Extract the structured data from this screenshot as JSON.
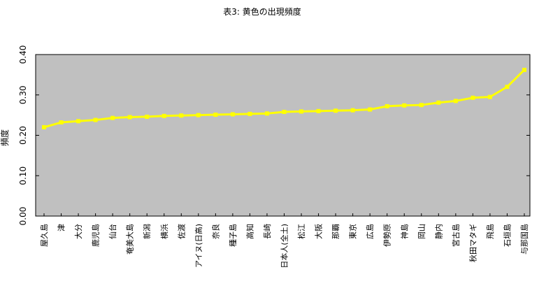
{
  "chart_data": {
    "type": "line",
    "title": "表3: 黄色の出現頻度",
    "xlabel": "",
    "ylabel": "頻度",
    "ylim": [
      0,
      0.4
    ],
    "yticks": [
      "0.00",
      "0.10",
      "0.20",
      "0.30",
      "0.40"
    ],
    "grid": false,
    "legend": "none",
    "categories": [
      "屋久島",
      "津",
      "大分",
      "鹿児島",
      "仙台",
      "奄美大島",
      "新潟",
      "横浜",
      "佐渡",
      "アイヌ(日高)",
      "奈良",
      "種子島",
      "高知",
      "長崎",
      "日本人(全土)",
      "松江",
      "大阪",
      "那覇",
      "東京",
      "広島",
      "伊勢原",
      "神島",
      "岡山",
      "静内",
      "宮古島",
      "秋田マタギ",
      "飛島",
      "石垣島",
      "与那国島"
    ],
    "series": [
      {
        "values": [
          0.22,
          0.232,
          0.235,
          0.238,
          0.243,
          0.245,
          0.246,
          0.248,
          0.249,
          0.25,
          0.251,
          0.252,
          0.253,
          0.254,
          0.258,
          0.259,
          0.26,
          0.261,
          0.262,
          0.264,
          0.272,
          0.274,
          0.275,
          0.281,
          0.285,
          0.293,
          0.295,
          0.32,
          0.362
        ]
      }
    ],
    "colors": {
      "plot_bg": "#c0c0c0",
      "line": "#ffff00",
      "frame": "#000000"
    }
  }
}
